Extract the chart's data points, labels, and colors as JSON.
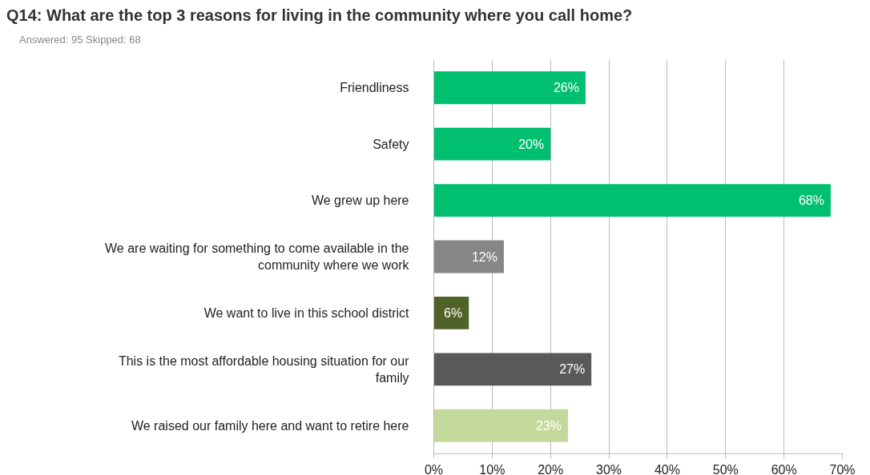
{
  "chart_data": {
    "type": "bar",
    "orientation": "horizontal",
    "title": "Q14: What are the top 3 reasons for living in the community where you call home?",
    "subtitle": "Answered: 95 Skipped: 68",
    "categories": [
      "Friendliness",
      "Safety",
      "We grew up here",
      "We are waiting for something to come available in the community where we work",
      "We want to live in this school district",
      "This is the most affordable housing situation for our family",
      "We raised our family here and want to retire here"
    ],
    "values": [
      26,
      20,
      68,
      12,
      6,
      27,
      23
    ],
    "colors": [
      "#00bf6f",
      "#00bf6f",
      "#00bf6f",
      "#868686",
      "#4f6228",
      "#595959",
      "#c5d89c"
    ],
    "xlim": [
      0,
      70
    ],
    "xticks": [
      {
        "value": 0,
        "label": "0%"
      },
      {
        "value": 10,
        "label": "10%"
      },
      {
        "value": 20,
        "label": "20%"
      },
      {
        "value": 30,
        "label": "30%"
      },
      {
        "value": 40,
        "label": "40%"
      },
      {
        "value": 50,
        "label": "50%"
      },
      {
        "value": 60,
        "label": "60%"
      },
      {
        "value": 70,
        "label": "70%"
      }
    ],
    "grid": "x",
    "value_labels": [
      "26%",
      "20%",
      "68%",
      "12%",
      "6%",
      "27%",
      "23%"
    ]
  }
}
